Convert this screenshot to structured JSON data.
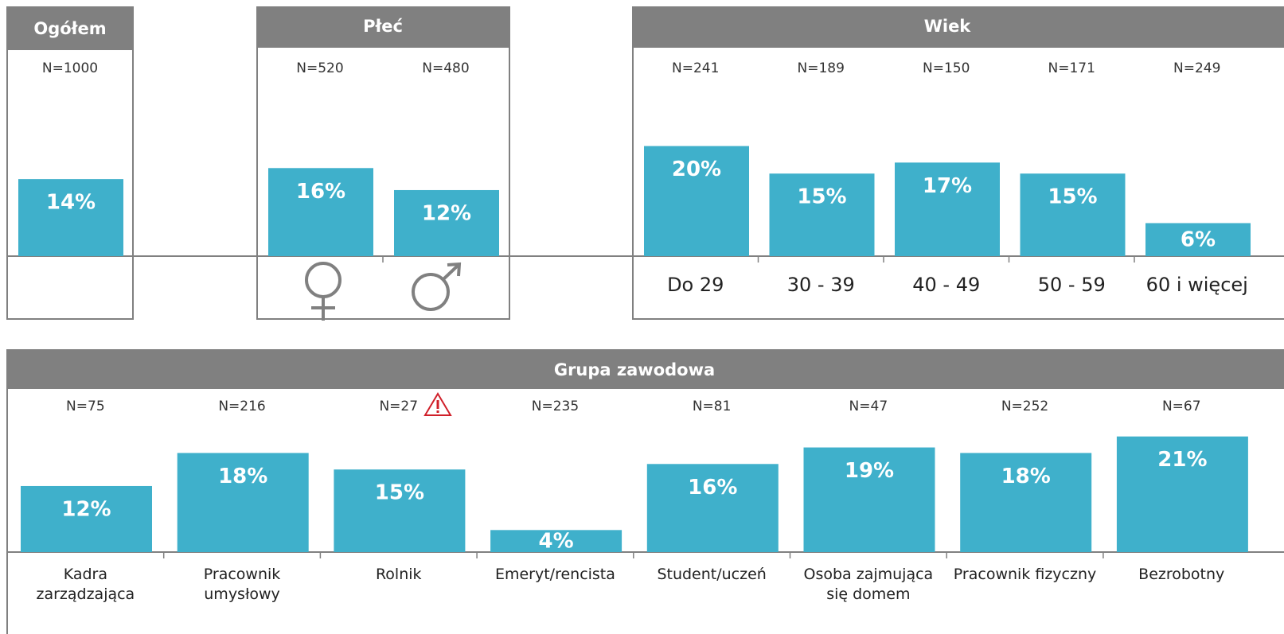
{
  "chart_data": [
    {
      "type": "bar",
      "title": "Ogółem",
      "n_labels": [
        "N=1000"
      ],
      "categories": [
        null
      ],
      "values": [
        14
      ],
      "value_labels": [
        "14%"
      ],
      "color": "#3fb0cb",
      "ylim": [
        0,
        25
      ]
    },
    {
      "type": "bar",
      "title": "Płeć",
      "n_labels": [
        "N=520",
        "N=480"
      ],
      "categories": [
        null,
        null
      ],
      "values": [
        16,
        12
      ],
      "value_labels": [
        "16%",
        "12%"
      ],
      "color": "#3fb0cb",
      "ylim": [
        0,
        25
      ]
    },
    {
      "type": "bar",
      "title": "Wiek",
      "n_labels": [
        "N=241",
        "N=189",
        "N=150",
        "N=171",
        "N=249"
      ],
      "categories": [
        "Do 29",
        "30 - 39",
        "40 - 49",
        "50 - 59",
        "60 i więcej"
      ],
      "values": [
        20,
        15,
        17,
        15,
        6
      ],
      "value_labels": [
        "20%",
        "15%",
        "17%",
        "15%",
        "6%"
      ],
      "color": "#3fb0cb",
      "ylim": [
        0,
        25
      ]
    },
    {
      "type": "bar",
      "title": "Grupa zawodowa",
      "n_labels": [
        "N=75",
        "N=216",
        "N=27",
        "N=235",
        "N=81",
        "N=47",
        "N=252",
        "N=67"
      ],
      "categories": [
        "Kadra\nzarządzająca",
        "Pracownik\numysłowy",
        "Rolnik",
        "Emeryt/rencista",
        "Student/uczeń",
        "Osoba zajmująca\nsię domem",
        "Pracownik fizyczny",
        "Bezrobotny"
      ],
      "values": [
        12,
        18,
        15,
        4,
        16,
        19,
        18,
        21
      ],
      "value_labels": [
        "12%",
        "18%",
        "15%",
        "4%",
        "16%",
        "19%",
        "18%",
        "21%"
      ],
      "color": "#3fb0cb",
      "ylim": [
        0,
        25
      ]
    }
  ]
}
